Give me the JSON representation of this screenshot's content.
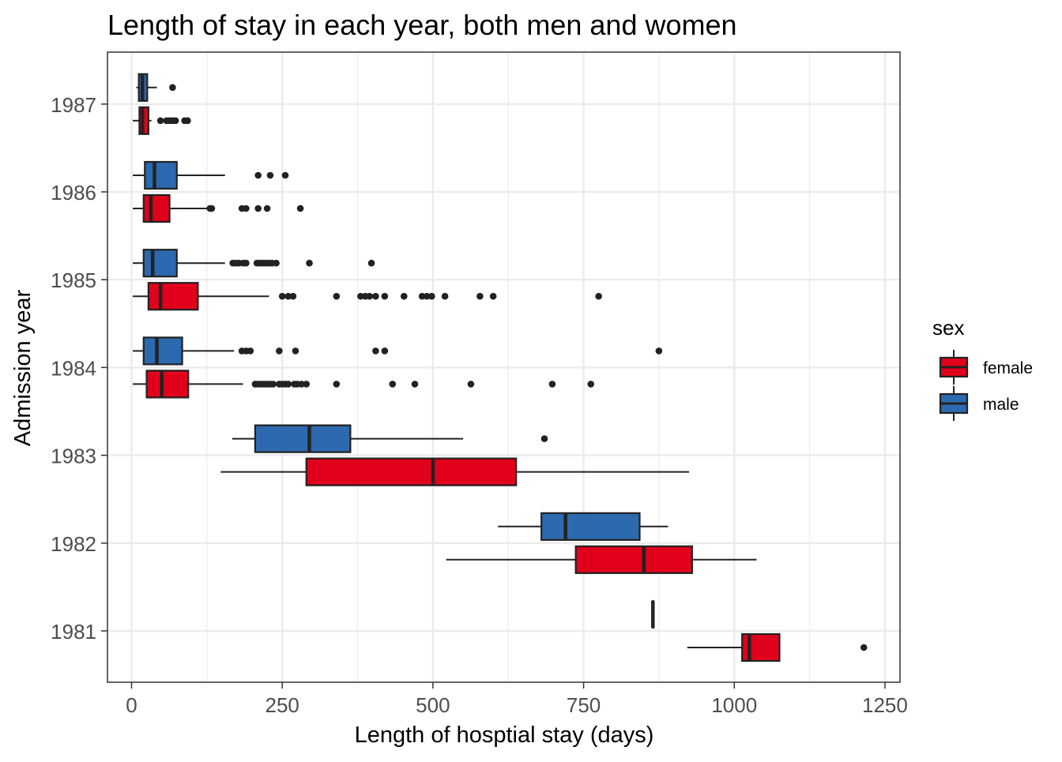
{
  "chart_data": {
    "type": "boxplot",
    "orientation": "horizontal",
    "title": "Length of stay in each year, both men and women",
    "xlabel": "Length of hosptial stay (days)",
    "ylabel": "Admission year",
    "xlim": [
      -40,
      1275
    ],
    "x_ticks": [
      0,
      250,
      500,
      750,
      1000,
      1250
    ],
    "x_tick_labels": [
      "0",
      "250",
      "500",
      "750",
      "1000",
      "1250"
    ],
    "categories": [
      "1981",
      "1982",
      "1983",
      "1984",
      "1985",
      "1986",
      "1987"
    ],
    "grid": true,
    "legend": {
      "title": "sex",
      "position": "right",
      "entries": [
        {
          "label": "female",
          "color": "#E0001B"
        },
        {
          "label": "male",
          "color": "#2C69AE"
        }
      ]
    },
    "colors": {
      "female": "#E0001B",
      "male": "#2C69AE",
      "outline": "#222222",
      "grid": "#EBEBEB",
      "panel_border": "#333333"
    },
    "series": [
      {
        "name": "female",
        "boxes": [
          {
            "year": "1981",
            "whisker_low": 922,
            "q1": 1013,
            "median": 1025,
            "q3": 1075,
            "whisker_high": 1075,
            "outliers": [
              1215
            ]
          },
          {
            "year": "1982",
            "whisker_low": 522,
            "q1": 737,
            "median": 850,
            "q3": 930,
            "whisker_high": 1037,
            "outliers": []
          },
          {
            "year": "1983",
            "whisker_low": 148,
            "q1": 290,
            "median": 500,
            "q3": 638,
            "whisker_high": 925,
            "outliers": []
          },
          {
            "year": "1984",
            "whisker_low": 2,
            "q1": 25,
            "median": 50,
            "q3": 94,
            "whisker_high": 185,
            "outliers": [
              205,
              210,
              215,
              220,
              225,
              230,
              235,
              245,
              250,
              255,
              260,
              270,
              275,
              282,
              290,
              340,
              433,
              470,
              563,
              698,
              762
            ]
          },
          {
            "year": "1985",
            "whisker_low": 2,
            "q1": 28,
            "median": 48,
            "q3": 110,
            "whisker_high": 228,
            "outliers": [
              250,
              260,
              268,
              340,
              380,
              388,
              395,
              405,
              420,
              452,
              482,
              490,
              498,
              520,
              578,
              600,
              775
            ]
          },
          {
            "year": "1986",
            "whisker_low": 2,
            "q1": 20,
            "median": 32,
            "q3": 63,
            "whisker_high": 128,
            "outliers": [
              130,
              133,
              183,
              190,
              210,
              225,
              280
            ]
          },
          {
            "year": "1987",
            "whisker_low": 2,
            "q1": 13,
            "median": 18,
            "q3": 28,
            "whisker_high": 33,
            "outliers": [
              48,
              58,
              63,
              68,
              73,
              88,
              93
            ]
          }
        ]
      },
      {
        "name": "male",
        "boxes": [
          {
            "year": "1981",
            "whisker_low": 865,
            "q1": 865,
            "median": 865,
            "q3": 865,
            "whisker_high": 865,
            "outliers": []
          },
          {
            "year": "1982",
            "whisker_low": 608,
            "q1": 680,
            "median": 720,
            "q3": 843,
            "whisker_high": 890,
            "outliers": []
          },
          {
            "year": "1983",
            "whisker_low": 167,
            "q1": 205,
            "median": 295,
            "q3": 363,
            "whisker_high": 550,
            "outliers": [
              685
            ]
          },
          {
            "year": "1984",
            "whisker_low": 2,
            "q1": 20,
            "median": 42,
            "q3": 84,
            "whisker_high": 170,
            "outliers": [
              183,
              190,
              197,
              245,
              272,
              405,
              420,
              875
            ]
          },
          {
            "year": "1985",
            "whisker_low": 2,
            "q1": 20,
            "median": 35,
            "q3": 75,
            "whisker_high": 155,
            "outliers": [
              168,
              173,
              178,
              185,
              190,
              208,
              213,
              218,
              223,
              228,
              233,
              240,
              295,
              398
            ]
          },
          {
            "year": "1986",
            "whisker_low": 2,
            "q1": 22,
            "median": 38,
            "q3": 75,
            "whisker_high": 155,
            "outliers": [
              210,
              230,
              255
            ]
          },
          {
            "year": "1987",
            "whisker_low": 8,
            "q1": 12,
            "median": 18,
            "q3": 26,
            "whisker_high": 42,
            "outliers": [
              68
            ]
          }
        ]
      }
    ]
  }
}
